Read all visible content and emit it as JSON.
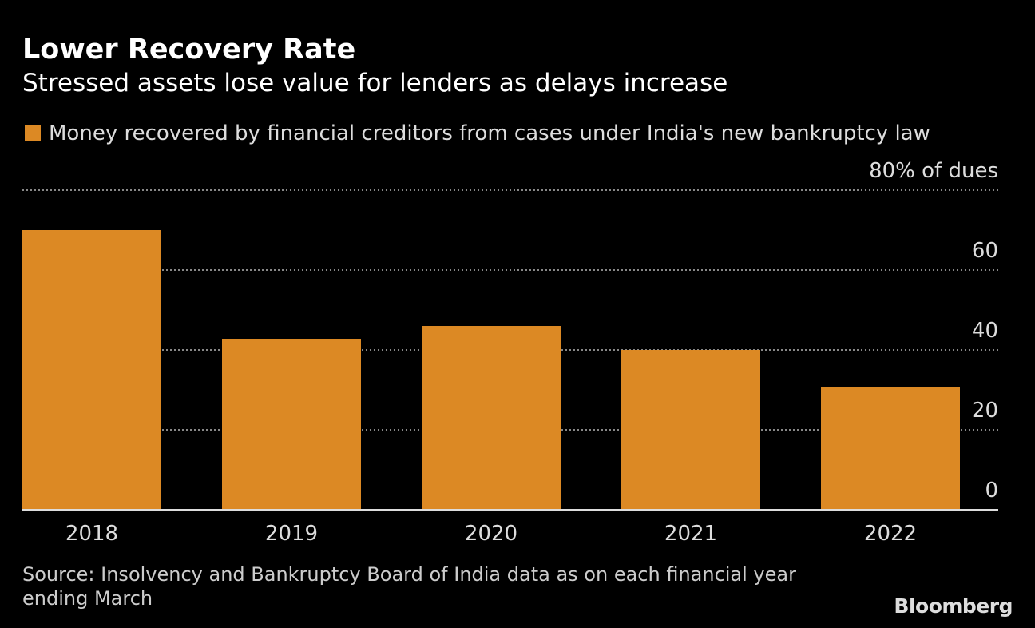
{
  "title": "Lower Recovery Rate",
  "subtitle": "Stressed assets lose value for lenders as delays increase",
  "source": "Source: Insolvency and Bankruptcy Board of India data as on each financial year ending March",
  "logo": "Bloomberg",
  "colors": {
    "bar": "#DC8924",
    "background": "#000000",
    "grid": "#888888"
  },
  "chart_data": {
    "type": "bar",
    "categories": [
      "2018",
      "2019",
      "2020",
      "2021",
      "2022"
    ],
    "series": [
      {
        "name": "Money recovered by financial creditors from cases under India's new bankruptcy law",
        "values": [
          70,
          42.8,
          46,
          40,
          30.8
        ]
      }
    ],
    "ylim": [
      0,
      80
    ],
    "yticks": [
      0,
      20,
      40,
      60,
      80
    ],
    "ytick_labels": [
      "0",
      "20",
      "40",
      "60",
      "80% of dues"
    ],
    "y_axis_position": "right",
    "grid": true,
    "legend_placement": "top-left"
  }
}
